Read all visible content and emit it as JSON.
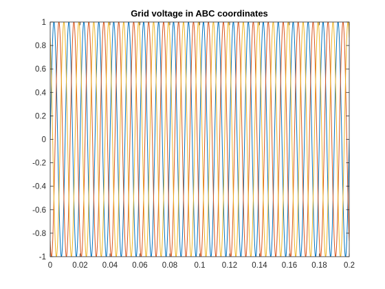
{
  "chart_data": {
    "type": "line",
    "title": "Grid voltage in ABC coordinates",
    "xlabel": "",
    "ylabel": "",
    "xlim": [
      0,
      0.2
    ],
    "ylim": [
      -1,
      1
    ],
    "xticks": [
      "0",
      "0.02",
      "0.04",
      "0.06",
      "0.08",
      "0.1",
      "0.12",
      "0.14",
      "0.16",
      "0.18",
      "0.2"
    ],
    "yticks": [
      "-1",
      "-0.8",
      "-0.6",
      "-0.4",
      "-0.2",
      "0",
      "0.2",
      "0.4",
      "0.6",
      "0.8",
      "1"
    ],
    "grid": false,
    "legend": "none",
    "series": [
      {
        "function": "sin(2*pi*f*t)",
        "frequency_hz": 100,
        "amplitude": 1,
        "phase_deg": 0,
        "color": "#0072BD"
      },
      {
        "function": "sin(2*pi*f*t)",
        "frequency_hz": 100,
        "amplitude": 1,
        "phase_deg": -120,
        "color": "#D95319"
      },
      {
        "function": "sin(2*pi*f*t)",
        "frequency_hz": 100,
        "amplitude": 1,
        "phase_deg": 120,
        "color": "#EDB120"
      }
    ]
  }
}
